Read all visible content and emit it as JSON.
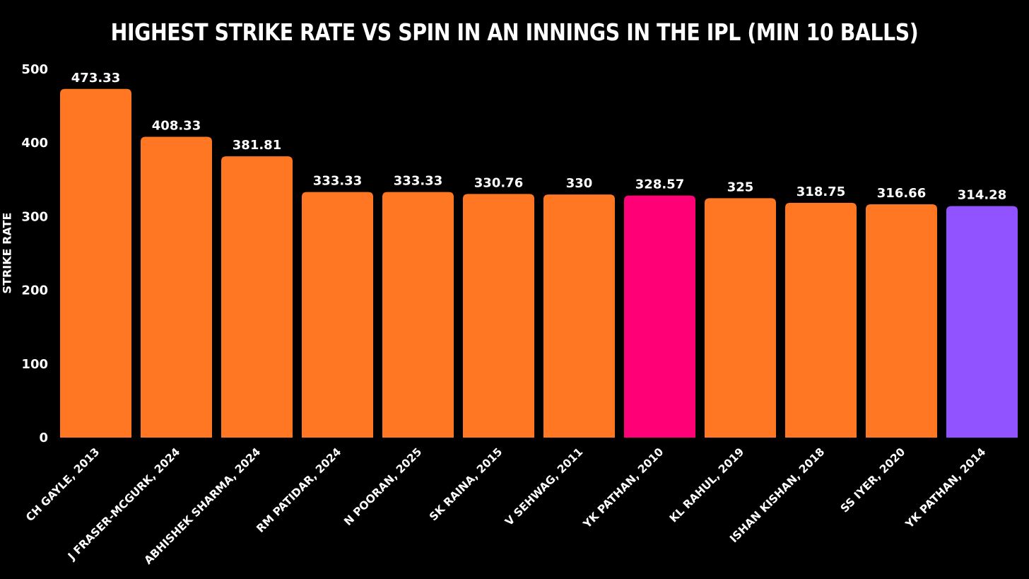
{
  "chart_data": {
    "type": "bar",
    "title": "HIGHEST STRIKE RATE VS SPIN IN AN INNINGS IN THE IPL (MIN 10 BALLS)",
    "xlabel": "",
    "ylabel": "STRIKE RATE",
    "ylim": [
      0,
      500
    ],
    "yticks": [
      0,
      100,
      200,
      300,
      400,
      500
    ],
    "grid": false,
    "legend": "none",
    "categories": [
      "CH GAYLE, 2013",
      "J FRASER-MCGURK, 2024",
      "ABHISHEK SHARMA, 2024",
      "RM PATIDAR, 2024",
      "N POORAN, 2025",
      "SK RAINA, 2015",
      "V SEHWAG, 2011",
      "YK PATHAN, 2010",
      "KL RAHUL, 2019",
      "ISHAN KISHAN, 2018",
      "SS IYER, 2020",
      "YK PATHAN, 2014"
    ],
    "values": [
      473.33,
      408.33,
      381.81,
      333.33,
      333.33,
      330.76,
      330,
      328.57,
      325,
      318.75,
      316.66,
      314.28
    ],
    "value_labels": [
      "473.33",
      "408.33",
      "381.81",
      "333.33",
      "333.33",
      "330.76",
      "330",
      "328.57",
      "325",
      "318.75",
      "316.66",
      "314.28"
    ],
    "bar_colors": [
      "#ff7722",
      "#ff7722",
      "#ff7722",
      "#ff7722",
      "#ff7722",
      "#ff7722",
      "#ff7722",
      "#ff0077",
      "#ff7722",
      "#ff7722",
      "#ff7722",
      "#9152ff"
    ]
  },
  "colors": {
    "background": "#000000",
    "text": "#ffffff",
    "bar_default": "#ff7722",
    "bar_highlight_pink": "#ff0077",
    "bar_highlight_purple": "#9152ff"
  }
}
